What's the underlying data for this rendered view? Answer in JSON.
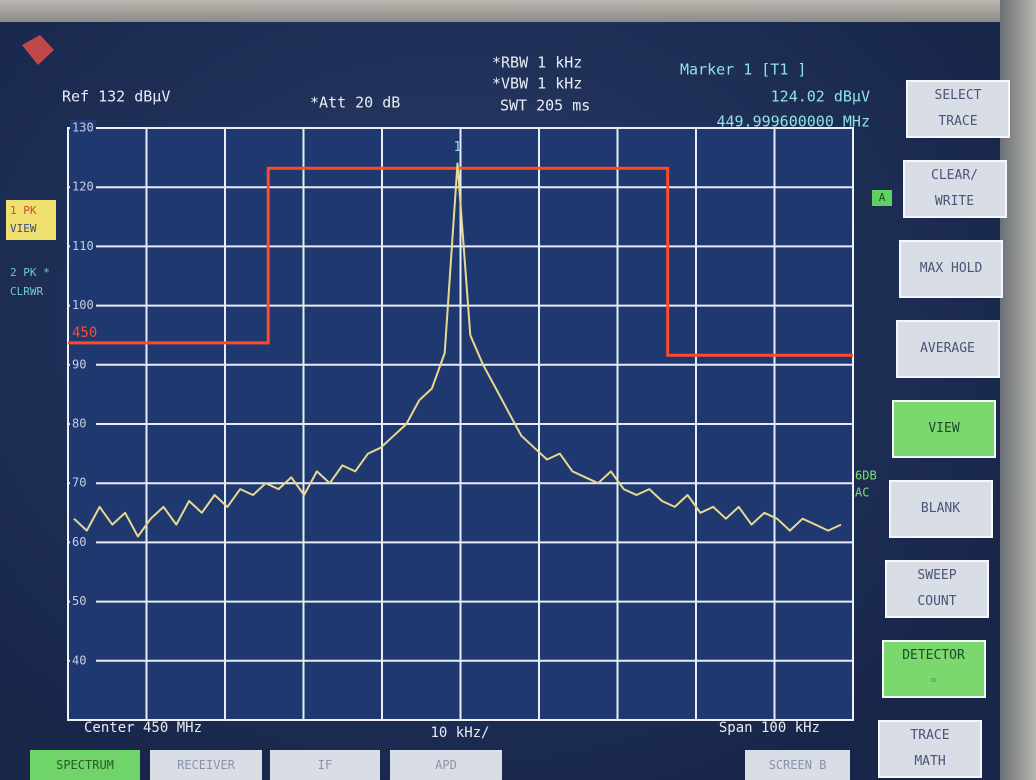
{
  "header": {
    "ref": "Ref  132 dBµV",
    "att": "*Att  20 dB",
    "rbw": "*RBW  1 kHz",
    "vbw": "*VBW  1 kHz",
    "swt": "SWT  205 ms",
    "marker_title": "Marker 1 [T1 ]",
    "marker_level": "124.02 dBµV",
    "marker_freq": "449.999600000 MHz"
  },
  "side_labels": {
    "trace1": [
      "1 PK",
      "VIEW"
    ],
    "trace2": [
      "2 PK *",
      "CLRWR"
    ],
    "a": "A",
    "detector": [
      "6DB",
      "AC"
    ]
  },
  "softkeys": [
    {
      "lines": [
        "SELECT",
        "TRACE"
      ],
      "active": false
    },
    {
      "lines": [
        "CLEAR/",
        "WRITE"
      ],
      "active": false
    },
    {
      "lines": [
        "MAX HOLD"
      ],
      "active": false
    },
    {
      "lines": [
        "AVERAGE"
      ],
      "active": false
    },
    {
      "lines": [
        "VIEW"
      ],
      "active": true
    },
    {
      "lines": [
        "BLANK"
      ],
      "active": false
    },
    {
      "lines": [
        "SWEEP",
        "COUNT"
      ],
      "active": false
    },
    {
      "lines": [
        "DETECTOR",
        "◦"
      ],
      "active": true
    },
    {
      "lines": [
        "TRACE",
        "MATH"
      ],
      "active": false
    }
  ],
  "tabs": [
    {
      "label": "SPECTRUM",
      "active": true
    },
    {
      "label": "RECEIVER",
      "active": false
    },
    {
      "label": "IF",
      "active": false
    },
    {
      "label": "APD",
      "active": false
    },
    {
      "label": "SCREEN B",
      "active": false
    }
  ],
  "chart_data": {
    "type": "line",
    "center_label": "Center  450 MHz",
    "div_label": "10 kHz/",
    "span_label": "Span  100 kHz",
    "ylim": [
      30,
      130
    ],
    "yticks": [
      40,
      50,
      60,
      70,
      80,
      90,
      100,
      110,
      120,
      130
    ],
    "xlim": [
      449.95,
      450.05
    ],
    "grid": true,
    "color": "#e8d890",
    "values": [
      64,
      62,
      66,
      63,
      65,
      61,
      64,
      66,
      63,
      67,
      65,
      68,
      66,
      69,
      68,
      70,
      69,
      71,
      68,
      72,
      70,
      73,
      72,
      75,
      76,
      78,
      80,
      84,
      86,
      92,
      124,
      95,
      90,
      86,
      82,
      78,
      76,
      74,
      75,
      72,
      71,
      70,
      72,
      69,
      68,
      69,
      67,
      66,
      68,
      65,
      66,
      64,
      66,
      63,
      65,
      64,
      62,
      64,
      63,
      62,
      63
    ],
    "marker": {
      "label": "1",
      "index": 30
    },
    "limit_line": {
      "label": "450",
      "color": "#ff4a2a",
      "x": [
        449.95,
        449.9755,
        449.9755,
        450.0264,
        450.0264,
        450.05
      ],
      "values": [
        93.7,
        93.7,
        123.2,
        123.2,
        91.6,
        91.6
      ]
    }
  }
}
